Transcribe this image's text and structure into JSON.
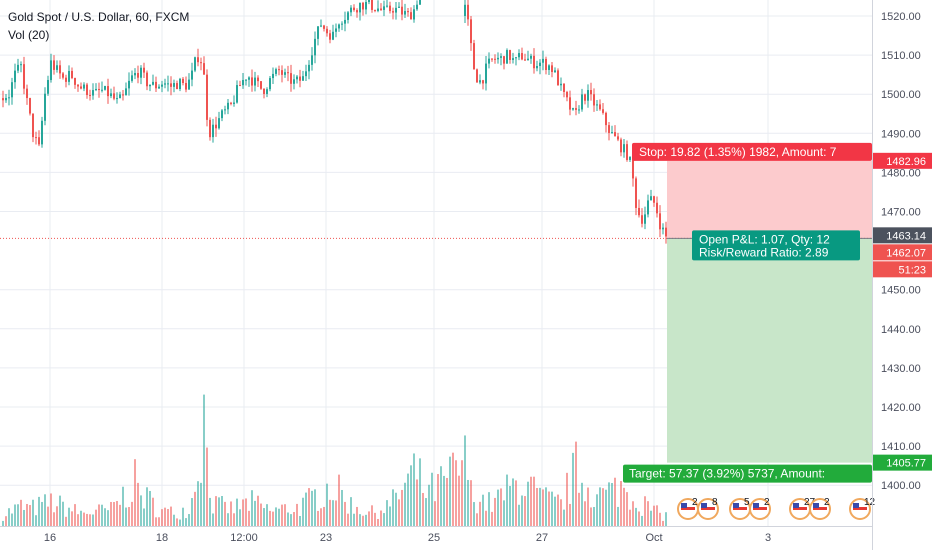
{
  "legend": {
    "symbol_title": "Gold Spot / U.S. Dollar, 60, FXCM",
    "volume_title": "Vol (20)"
  },
  "colors": {
    "up": "#26a69a",
    "down": "#ef5350",
    "grid": "#e9ecf2",
    "axis_text": "#4a4e5c",
    "stop_zone": "#fccbcd",
    "target_zone": "#c8e6c9",
    "stop_badge": "#f23645",
    "target_badge": "#22ab3b",
    "pl_badge": "#089981",
    "last_price_badge": "#4c525e",
    "current_line": "#ef5350"
  },
  "chart_data": {
    "type": "candlestick",
    "symbol": "Gold Spot / U.S. Dollar",
    "interval": "60",
    "source": "FXCM",
    "ylim": [
      1391,
      1525
    ],
    "grid": true,
    "y_ticks": [
      1520,
      1510,
      1500,
      1490,
      1480,
      1470,
      1450,
      1440,
      1430,
      1420,
      1410,
      1400
    ],
    "y_tick_labels": [
      "1520.00",
      "1510.00",
      "1500.00",
      "1490.00",
      "1480.00",
      "1470.00",
      "1450.00",
      "1440.00",
      "1430.00",
      "1420.00",
      "1410.00",
      "1400.00"
    ],
    "x_ticks": [
      "16",
      "18",
      "12:00",
      "23",
      "25",
      "27",
      "Oct",
      "3"
    ],
    "price_path": [
      [
        0,
        1499
      ],
      [
        8,
        1500
      ],
      [
        14,
        1505
      ],
      [
        20,
        1507
      ],
      [
        26,
        1498
      ],
      [
        32,
        1490
      ],
      [
        38,
        1486
      ],
      [
        44,
        1500
      ],
      [
        50,
        1508
      ],
      [
        56,
        1506
      ],
      [
        62,
        1504
      ],
      [
        70,
        1505
      ],
      [
        78,
        1502
      ],
      [
        86,
        1501
      ],
      [
        94,
        1500
      ],
      [
        100,
        1501
      ],
      [
        108,
        1500
      ],
      [
        116,
        1498
      ],
      [
        122,
        1499
      ],
      [
        130,
        1504
      ],
      [
        138,
        1506
      ],
      [
        146,
        1503
      ],
      [
        154,
        1502
      ],
      [
        162,
        1503
      ],
      [
        170,
        1502
      ],
      [
        178,
        1503
      ],
      [
        184,
        1502
      ],
      [
        190,
        1504
      ],
      [
        196,
        1510
      ],
      [
        202,
        1508
      ],
      [
        205,
        1497
      ],
      [
        208,
        1490
      ],
      [
        214,
        1492
      ],
      [
        222,
        1495
      ],
      [
        230,
        1497
      ],
      [
        238,
        1502
      ],
      [
        246,
        1505
      ],
      [
        254,
        1503
      ],
      [
        262,
        1501
      ],
      [
        270,
        1504
      ],
      [
        278,
        1506
      ],
      [
        286,
        1504
      ],
      [
        294,
        1503
      ],
      [
        302,
        1504
      ],
      [
        308,
        1509
      ],
      [
        314,
        1514
      ],
      [
        320,
        1518
      ],
      [
        326,
        1516
      ],
      [
        332,
        1515
      ],
      [
        338,
        1519
      ],
      [
        344,
        1520
      ],
      [
        352,
        1522
      ],
      [
        360,
        1523
      ],
      [
        368,
        1523
      ],
      [
        376,
        1522
      ],
      [
        384,
        1521
      ],
      [
        392,
        1522
      ],
      [
        400,
        1521
      ],
      [
        408,
        1520
      ],
      [
        414,
        1522
      ],
      [
        418,
        1526
      ],
      [
        440,
        1526
      ],
      [
        460,
        1526
      ],
      [
        466,
        1520
      ],
      [
        470,
        1512
      ],
      [
        474,
        1505
      ],
      [
        480,
        1503
      ],
      [
        486,
        1507
      ],
      [
        492,
        1509
      ],
      [
        500,
        1509
      ],
      [
        508,
        1510
      ],
      [
        514,
        1508
      ],
      [
        520,
        1510
      ],
      [
        526,
        1509
      ],
      [
        534,
        1508
      ],
      [
        542,
        1508
      ],
      [
        550,
        1507
      ],
      [
        556,
        1504
      ],
      [
        562,
        1500
      ],
      [
        568,
        1497
      ],
      [
        574,
        1494
      ],
      [
        580,
        1499
      ],
      [
        586,
        1500
      ],
      [
        592,
        1498
      ],
      [
        598,
        1496
      ],
      [
        604,
        1493
      ],
      [
        610,
        1490
      ],
      [
        616,
        1488
      ],
      [
        622,
        1486
      ],
      [
        628,
        1484
      ],
      [
        632,
        1478
      ],
      [
        636,
        1470
      ],
      [
        642,
        1468
      ],
      [
        648,
        1473
      ],
      [
        654,
        1472
      ],
      [
        660,
        1466
      ],
      [
        666,
        1463
      ]
    ],
    "volume_scale_max": 100,
    "volume_path": [
      [
        0,
        10
      ],
      [
        20,
        18
      ],
      [
        30,
        16
      ],
      [
        50,
        22
      ],
      [
        80,
        12
      ],
      [
        110,
        15
      ],
      [
        134,
        40
      ],
      [
        140,
        30
      ],
      [
        160,
        14
      ],
      [
        175,
        12
      ],
      [
        190,
        18
      ],
      [
        203,
        100
      ],
      [
        212,
        20
      ],
      [
        230,
        16
      ],
      [
        250,
        22
      ],
      [
        270,
        14
      ],
      [
        300,
        18
      ],
      [
        330,
        38
      ],
      [
        350,
        20
      ],
      [
        370,
        12
      ],
      [
        390,
        20
      ],
      [
        414,
        50
      ],
      [
        426,
        30
      ],
      [
        440,
        38
      ],
      [
        466,
        60
      ],
      [
        470,
        30
      ],
      [
        490,
        20
      ],
      [
        520,
        42
      ],
      [
        540,
        26
      ],
      [
        560,
        20
      ],
      [
        575,
        52
      ],
      [
        582,
        40
      ],
      [
        600,
        28
      ],
      [
        620,
        36
      ],
      [
        640,
        22
      ],
      [
        660,
        10
      ]
    ],
    "current_price": 1463.14,
    "series": [
      {
        "name": "Gold Spot / U.S. Dollar",
        "kind": "ohlc"
      },
      {
        "name": "Vol (20)",
        "kind": "volume"
      }
    ],
    "annotations": {
      "stop_price": 1482.96,
      "entry_price": 1463.14,
      "target_price": 1405.77,
      "stop_text": "Stop: 19.82 (1.35%) 1982, Amount: 7",
      "target_text": "Target: 57.37 (3.92%) 5737, Amount: ",
      "pl_line1": "Open P&L: 1.07, Qty: 12",
      "pl_line2": "Risk/Reward Ratio: 2.89",
      "price_labels": {
        "stop": "1482.96",
        "last": "1463.14",
        "bid": "1462.07",
        "countdown": "51:23",
        "target": "1405.77"
      }
    },
    "event_badges": [
      "2",
      "8",
      "5",
      "2",
      "27",
      "2",
      "12"
    ]
  }
}
